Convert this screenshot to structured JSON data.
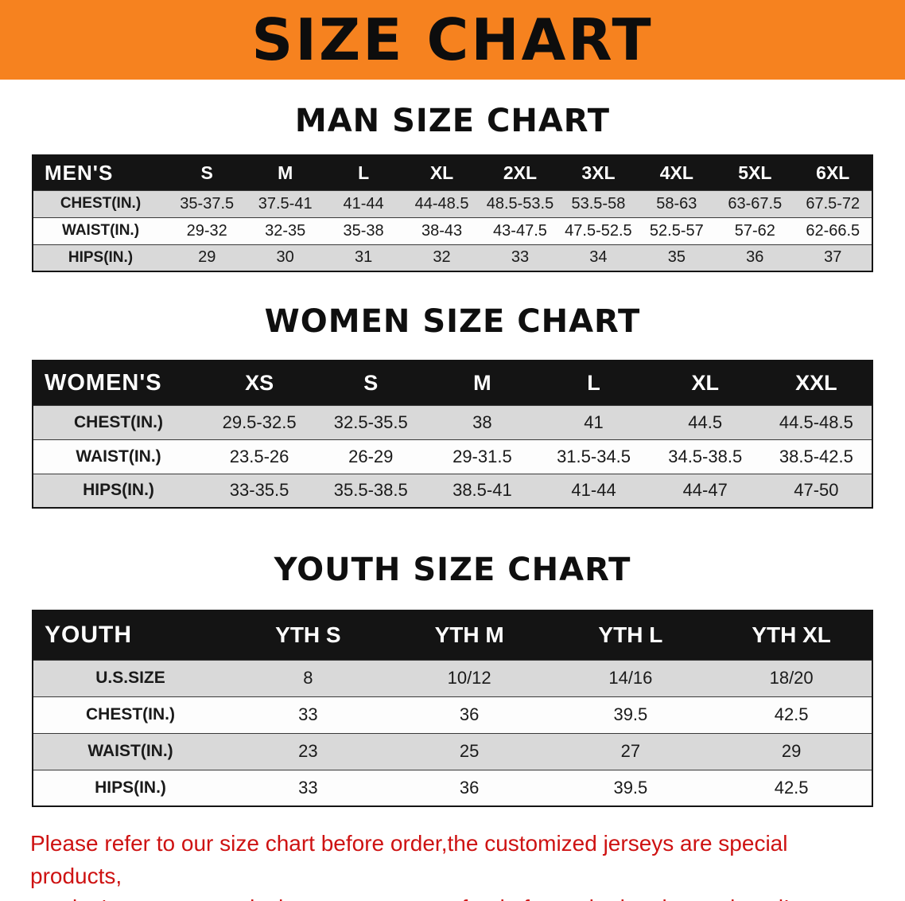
{
  "banner": {
    "title": "SIZE CHART",
    "bg_color": "#f6821f"
  },
  "chart_data": [
    {
      "type": "table",
      "title": "MAN SIZE CHART",
      "label": "MEN'S",
      "columns": [
        "S",
        "M",
        "L",
        "XL",
        "2XL",
        "3XL",
        "4XL",
        "5XL",
        "6XL"
      ],
      "rows": [
        {
          "label": "CHEST(IN.)",
          "values": [
            "35-37.5",
            "37.5-41",
            "41-44",
            "44-48.5",
            "48.5-53.5",
            "53.5-58",
            "58-63",
            "63-67.5",
            "67.5-72"
          ]
        },
        {
          "label": "WAIST(IN.)",
          "values": [
            "29-32",
            "32-35",
            "35-38",
            "38-43",
            "43-47.5",
            "47.5-52.5",
            "52.5-57",
            "57-62",
            "62-66.5"
          ]
        },
        {
          "label": "HIPS(IN.)",
          "values": [
            "29",
            "30",
            "31",
            "32",
            "33",
            "34",
            "35",
            "36",
            "37"
          ]
        }
      ]
    },
    {
      "type": "table",
      "title": "WOMEN SIZE CHART",
      "label": "WOMEN'S",
      "columns": [
        "XS",
        "S",
        "M",
        "L",
        "XL",
        "XXL"
      ],
      "rows": [
        {
          "label": "CHEST(IN.)",
          "values": [
            "29.5-32.5",
            "32.5-35.5",
            "38",
            "41",
            "44.5",
            "44.5-48.5"
          ]
        },
        {
          "label": "WAIST(IN.)",
          "values": [
            "23.5-26",
            "26-29",
            "29-31.5",
            "31.5-34.5",
            "34.5-38.5",
            "38.5-42.5"
          ]
        },
        {
          "label": "HIPS(IN.)",
          "values": [
            "33-35.5",
            "35.5-38.5",
            "38.5-41",
            "41-44",
            "44-47",
            "47-50"
          ]
        }
      ]
    },
    {
      "type": "table",
      "title": "YOUTH SIZE CHART",
      "label": "YOUTH",
      "columns": [
        "YTH S",
        "YTH M",
        "YTH L",
        "YTH XL"
      ],
      "rows": [
        {
          "label": "U.S.SIZE",
          "values": [
            "8",
            "10/12",
            "14/16",
            "18/20"
          ]
        },
        {
          "label": "CHEST(IN.)",
          "values": [
            "33",
            "36",
            "39.5",
            "42.5"
          ]
        },
        {
          "label": "WAIST(IN.)",
          "values": [
            "23",
            "25",
            "27",
            "29"
          ]
        },
        {
          "label": "HIPS(IN.)",
          "values": [
            "33",
            "36",
            "39.5",
            "42.5"
          ]
        }
      ]
    }
  ],
  "disclaimer": {
    "line1": "Please refer to our size chart before order,the customized jerseys are special products,",
    "line2": "we don't accept cancel, change, teturn or refund after order has been placed!",
    "color": "#ce1212"
  }
}
